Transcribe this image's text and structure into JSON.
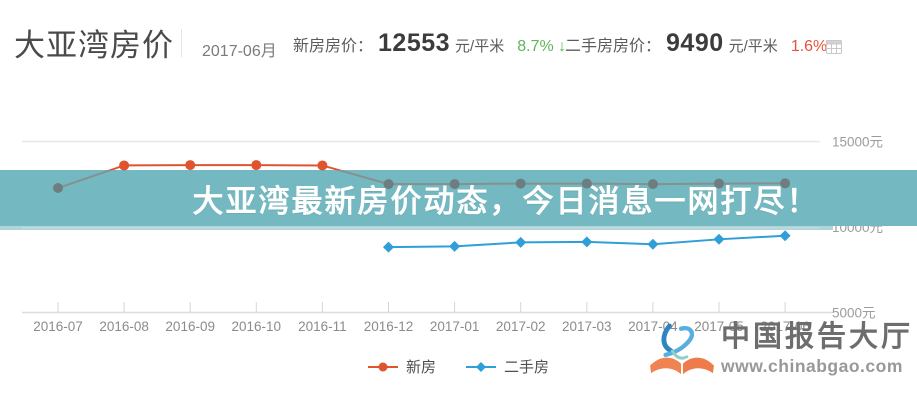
{
  "header": {
    "title": "大亚湾房价",
    "period": "2017-06月",
    "stats": [
      {
        "label": "新房房价：",
        "value": "12553",
        "unit": "元/平米",
        "change": "8.7%",
        "arrow": "↓",
        "trend": "down"
      },
      {
        "label": "二手房房价：",
        "value": "9490",
        "unit": "元/平米",
        "change": "1.6%",
        "arrow": "↑",
        "trend": "up"
      }
    ],
    "colors": {
      "down": "#5fb55a",
      "up": "#e5533c"
    }
  },
  "banner": {
    "text": "大亚湾最新房价动态，今日消息一网打尽！",
    "bg": "#74b9c1",
    "edge": "#aed5d9",
    "text_color": "#ffffff",
    "muted_line": "#84918f",
    "muted_dot": "#6d7d80"
  },
  "chart_data": {
    "type": "line",
    "categories": [
      "2016-07",
      "2016-08",
      "2016-09",
      "2016-10",
      "2016-11",
      "2016-12",
      "2017-01",
      "2017-02",
      "2017-03",
      "2017-04",
      "2017-05",
      "2017-06"
    ],
    "series": [
      {
        "name": "新房",
        "color": "#e0532f",
        "marker": "circle",
        "values": [
          12280,
          13600,
          13620,
          13620,
          13600,
          12510,
          12510,
          12540,
          12540,
          12510,
          12540,
          12553
        ]
      },
      {
        "name": "二手房",
        "color": "#2f9fd9",
        "marker": "diamond",
        "values": [
          null,
          null,
          null,
          null,
          null,
          8820,
          8870,
          9100,
          9130,
          8990,
          9280,
          9490
        ]
      }
    ],
    "y_ticks": [
      "15000元",
      "10000元",
      "5000元"
    ],
    "ylim": [
      5000,
      15000
    ],
    "unit": "元",
    "grid": true,
    "legend_position": "bottom"
  },
  "watermark": {
    "name": "中国报告大厅",
    "url": "www.chinabgao.com"
  }
}
